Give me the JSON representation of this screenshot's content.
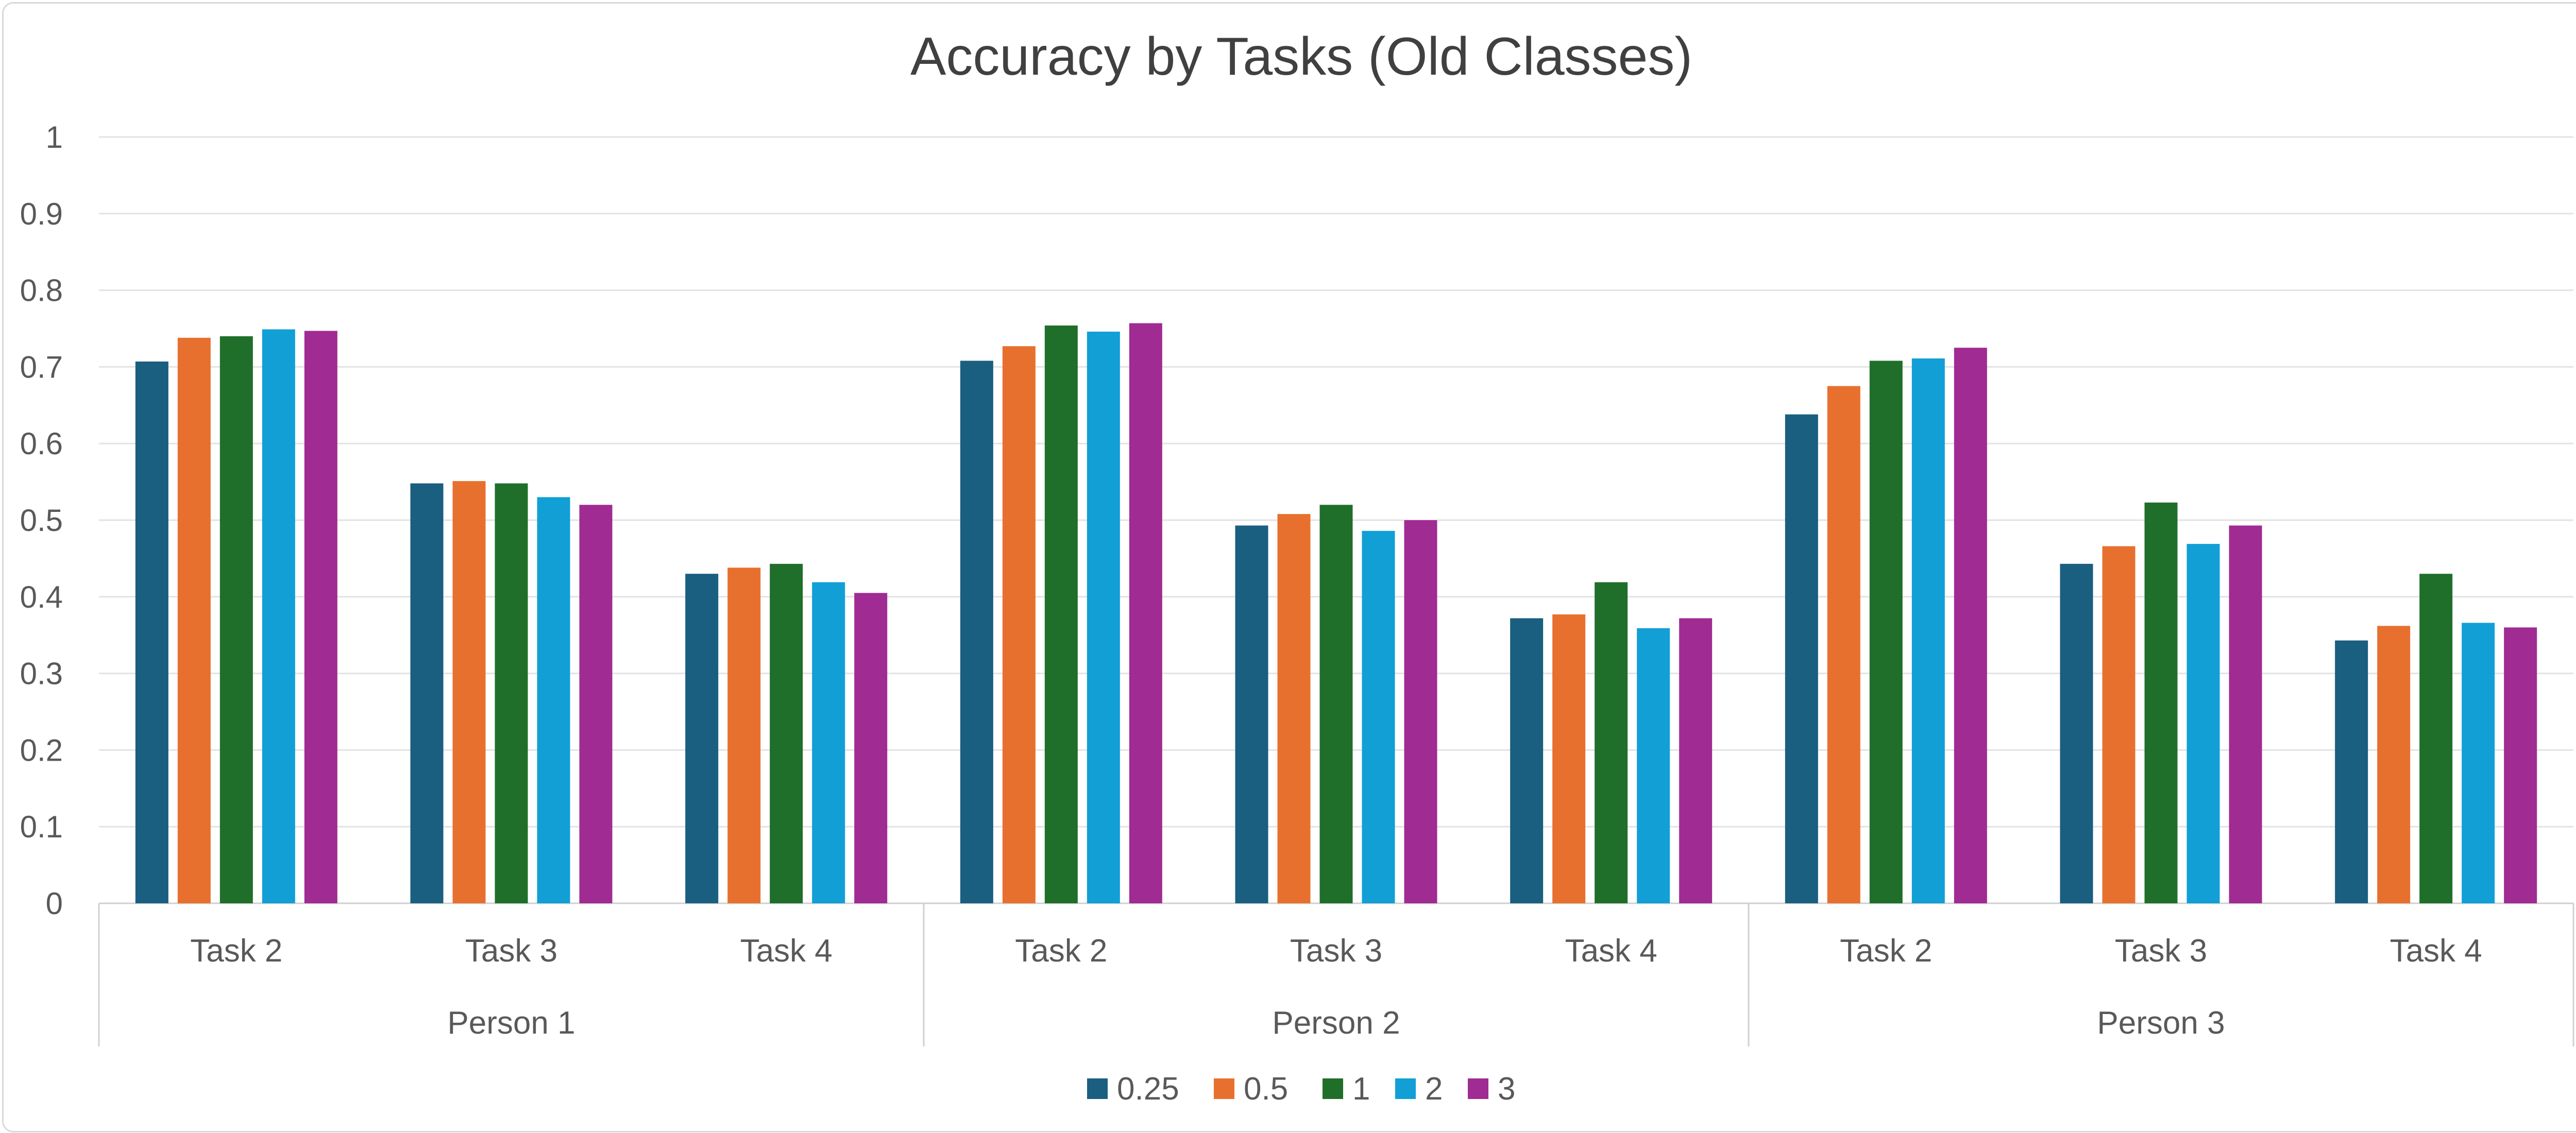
{
  "chart_data": {
    "type": "bar",
    "title": "Accuracy by Tasks (Old Classes)",
    "xlabel": "",
    "ylabel": "",
    "ylim": [
      0,
      1
    ],
    "yticks": [
      "0",
      "0.1",
      "0.2",
      "0.3",
      "0.4",
      "0.5",
      "0.6",
      "0.7",
      "0.8",
      "0.9",
      "1"
    ],
    "grid": true,
    "legend_position": "bottom",
    "groups": [
      "Person 1",
      "Person 2",
      "Person 3"
    ],
    "categories": [
      "Task 2",
      "Task 3",
      "Task 4",
      "Task 2",
      "Task 3",
      "Task 4",
      "Task 2",
      "Task 3",
      "Task 4"
    ],
    "series": [
      {
        "name": "0.25",
        "color": "#1a5e80",
        "values": [
          0.707,
          0.548,
          0.43,
          0.708,
          0.493,
          0.372,
          0.638,
          0.443,
          0.343
        ]
      },
      {
        "name": "0.5",
        "color": "#e8702f",
        "values": [
          0.738,
          0.551,
          0.438,
          0.727,
          0.508,
          0.377,
          0.675,
          0.466,
          0.362
        ]
      },
      {
        "name": "1",
        "color": "#1f6f2a",
        "values": [
          0.74,
          0.548,
          0.443,
          0.754,
          0.52,
          0.419,
          0.708,
          0.523,
          0.43
        ]
      },
      {
        "name": "2",
        "color": "#119fd6",
        "values": [
          0.749,
          0.53,
          0.419,
          0.746,
          0.486,
          0.359,
          0.711,
          0.469,
          0.366
        ]
      },
      {
        "name": "3",
        "color": "#a02b93",
        "values": [
          0.747,
          0.52,
          0.405,
          0.757,
          0.5,
          0.372,
          0.725,
          0.493,
          0.36
        ]
      }
    ]
  }
}
